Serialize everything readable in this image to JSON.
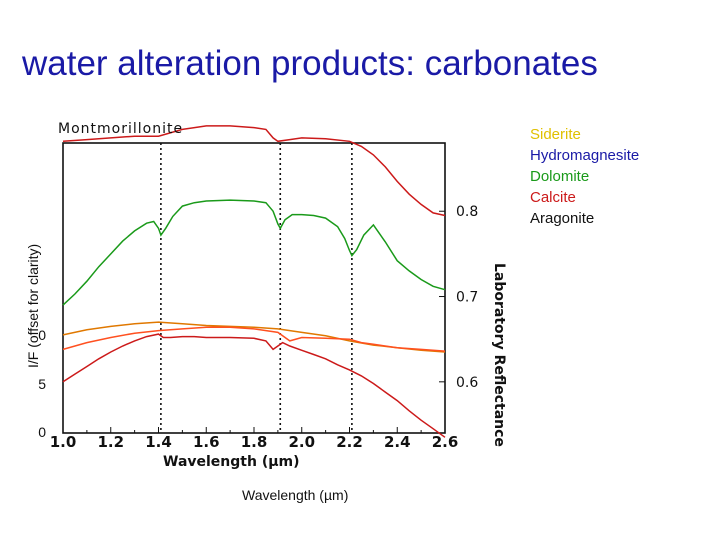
{
  "slide": {
    "title": "water alteration products: carbonates",
    "title_color": "#1a1aa6"
  },
  "legend": [
    {
      "label": "Siderite",
      "color": "#e0c000"
    },
    {
      "label": "Hydromagnesite",
      "color": "#1a1aa6"
    },
    {
      "label": "Dolomite",
      "color": "#1a9a1a"
    },
    {
      "label": "Calcite",
      "color": "#cc1a1a"
    },
    {
      "label": "Aragonite",
      "color": "#111111"
    }
  ],
  "chart_data": {
    "type": "line",
    "title": "Montmorillonite",
    "xlabel": "Wavelength (μm)",
    "xlabel_outer": "Wavelength (µm)",
    "ylabel": "I/F (offset for clarity)",
    "ylabel_right": "Laboratory Reflectance",
    "xlim": [
      1.0,
      2.6
    ],
    "x_ticks": [
      "1.0",
      "1.2",
      "1.4",
      "1.6",
      "1.8",
      "2.0",
      "2.2",
      "2.4",
      "2.6"
    ],
    "left_ticks": [
      "0",
      "5",
      "0"
    ],
    "right_ticks": [
      "0.8",
      "0.7",
      "0.6"
    ],
    "right_ylim": [
      0.54,
      0.88
    ],
    "reference_lines_x": [
      1.41,
      1.91,
      2.21
    ],
    "series": [
      {
        "color": "#cc1a1a",
        "x": [
          1.0,
          1.1,
          1.2,
          1.3,
          1.4,
          1.5,
          1.6,
          1.7,
          1.8,
          1.85,
          1.88,
          1.9,
          1.95,
          2.0,
          2.1,
          2.2,
          2.25,
          2.3,
          2.35,
          2.4,
          2.45,
          2.5,
          2.55,
          2.6
        ],
        "y": [
          0.882,
          0.884,
          0.886,
          0.888,
          0.888,
          0.896,
          0.9,
          0.9,
          0.898,
          0.896,
          0.886,
          0.882,
          0.884,
          0.886,
          0.885,
          0.882,
          0.876,
          0.866,
          0.852,
          0.835,
          0.82,
          0.808,
          0.798,
          0.795
        ]
      },
      {
        "color": "#1a9a1a",
        "x": [
          1.0,
          1.05,
          1.1,
          1.15,
          1.2,
          1.25,
          1.3,
          1.35,
          1.38,
          1.4,
          1.41,
          1.43,
          1.46,
          1.5,
          1.55,
          1.6,
          1.7,
          1.8,
          1.85,
          1.88,
          1.9,
          1.91,
          1.93,
          1.96,
          2.0,
          2.05,
          2.1,
          2.15,
          2.18,
          2.2,
          2.21,
          2.23,
          2.26,
          2.3,
          2.35,
          2.4,
          2.45,
          2.5,
          2.55,
          2.6
        ],
        "y": [
          0.69,
          0.703,
          0.718,
          0.735,
          0.75,
          0.765,
          0.777,
          0.786,
          0.788,
          0.78,
          0.772,
          0.78,
          0.794,
          0.806,
          0.81,
          0.812,
          0.813,
          0.812,
          0.81,
          0.8,
          0.785,
          0.78,
          0.79,
          0.796,
          0.796,
          0.795,
          0.792,
          0.782,
          0.768,
          0.754,
          0.748,
          0.755,
          0.772,
          0.784,
          0.764,
          0.742,
          0.73,
          0.72,
          0.712,
          0.708
        ]
      },
      {
        "color": "#e07800",
        "x": [
          1.0,
          1.1,
          1.2,
          1.3,
          1.4,
          1.5,
          1.6,
          1.7,
          1.8,
          1.9,
          2.0,
          2.1,
          2.2,
          2.3,
          2.4,
          2.5,
          2.6
        ],
        "y": [
          0.655,
          0.661,
          0.665,
          0.668,
          0.67,
          0.668,
          0.666,
          0.665,
          0.664,
          0.662,
          0.658,
          0.654,
          0.648,
          0.643,
          0.64,
          0.637,
          0.635
        ]
      },
      {
        "color": "#cc1a1a",
        "x": [
          1.0,
          1.05,
          1.1,
          1.15,
          1.2,
          1.25,
          1.3,
          1.35,
          1.4,
          1.42,
          1.45,
          1.5,
          1.55,
          1.6,
          1.7,
          1.8,
          1.85,
          1.88,
          1.9,
          1.92,
          1.95,
          2.0,
          2.05,
          2.1,
          2.15,
          2.2,
          2.25,
          2.3,
          2.35,
          2.4,
          2.45,
          2.5,
          2.55,
          2.6
        ],
        "y": [
          0.6,
          0.609,
          0.618,
          0.627,
          0.635,
          0.642,
          0.648,
          0.653,
          0.656,
          0.652,
          0.652,
          0.653,
          0.653,
          0.652,
          0.652,
          0.651,
          0.648,
          0.638,
          0.642,
          0.646,
          0.642,
          0.637,
          0.632,
          0.627,
          0.62,
          0.614,
          0.607,
          0.598,
          0.588,
          0.578,
          0.566,
          0.555,
          0.545,
          0.535
        ]
      },
      {
        "color": "#ff5020",
        "x": [
          1.0,
          1.1,
          1.2,
          1.3,
          1.4,
          1.5,
          1.6,
          1.7,
          1.8,
          1.9,
          1.95,
          2.0,
          2.1,
          2.2,
          2.25,
          2.3,
          2.4,
          2.5,
          2.6
        ],
        "y": [
          0.638,
          0.646,
          0.652,
          0.657,
          0.66,
          0.662,
          0.664,
          0.664,
          0.662,
          0.658,
          0.648,
          0.652,
          0.651,
          0.65,
          0.646,
          0.644,
          0.64,
          0.638,
          0.636
        ]
      }
    ]
  }
}
